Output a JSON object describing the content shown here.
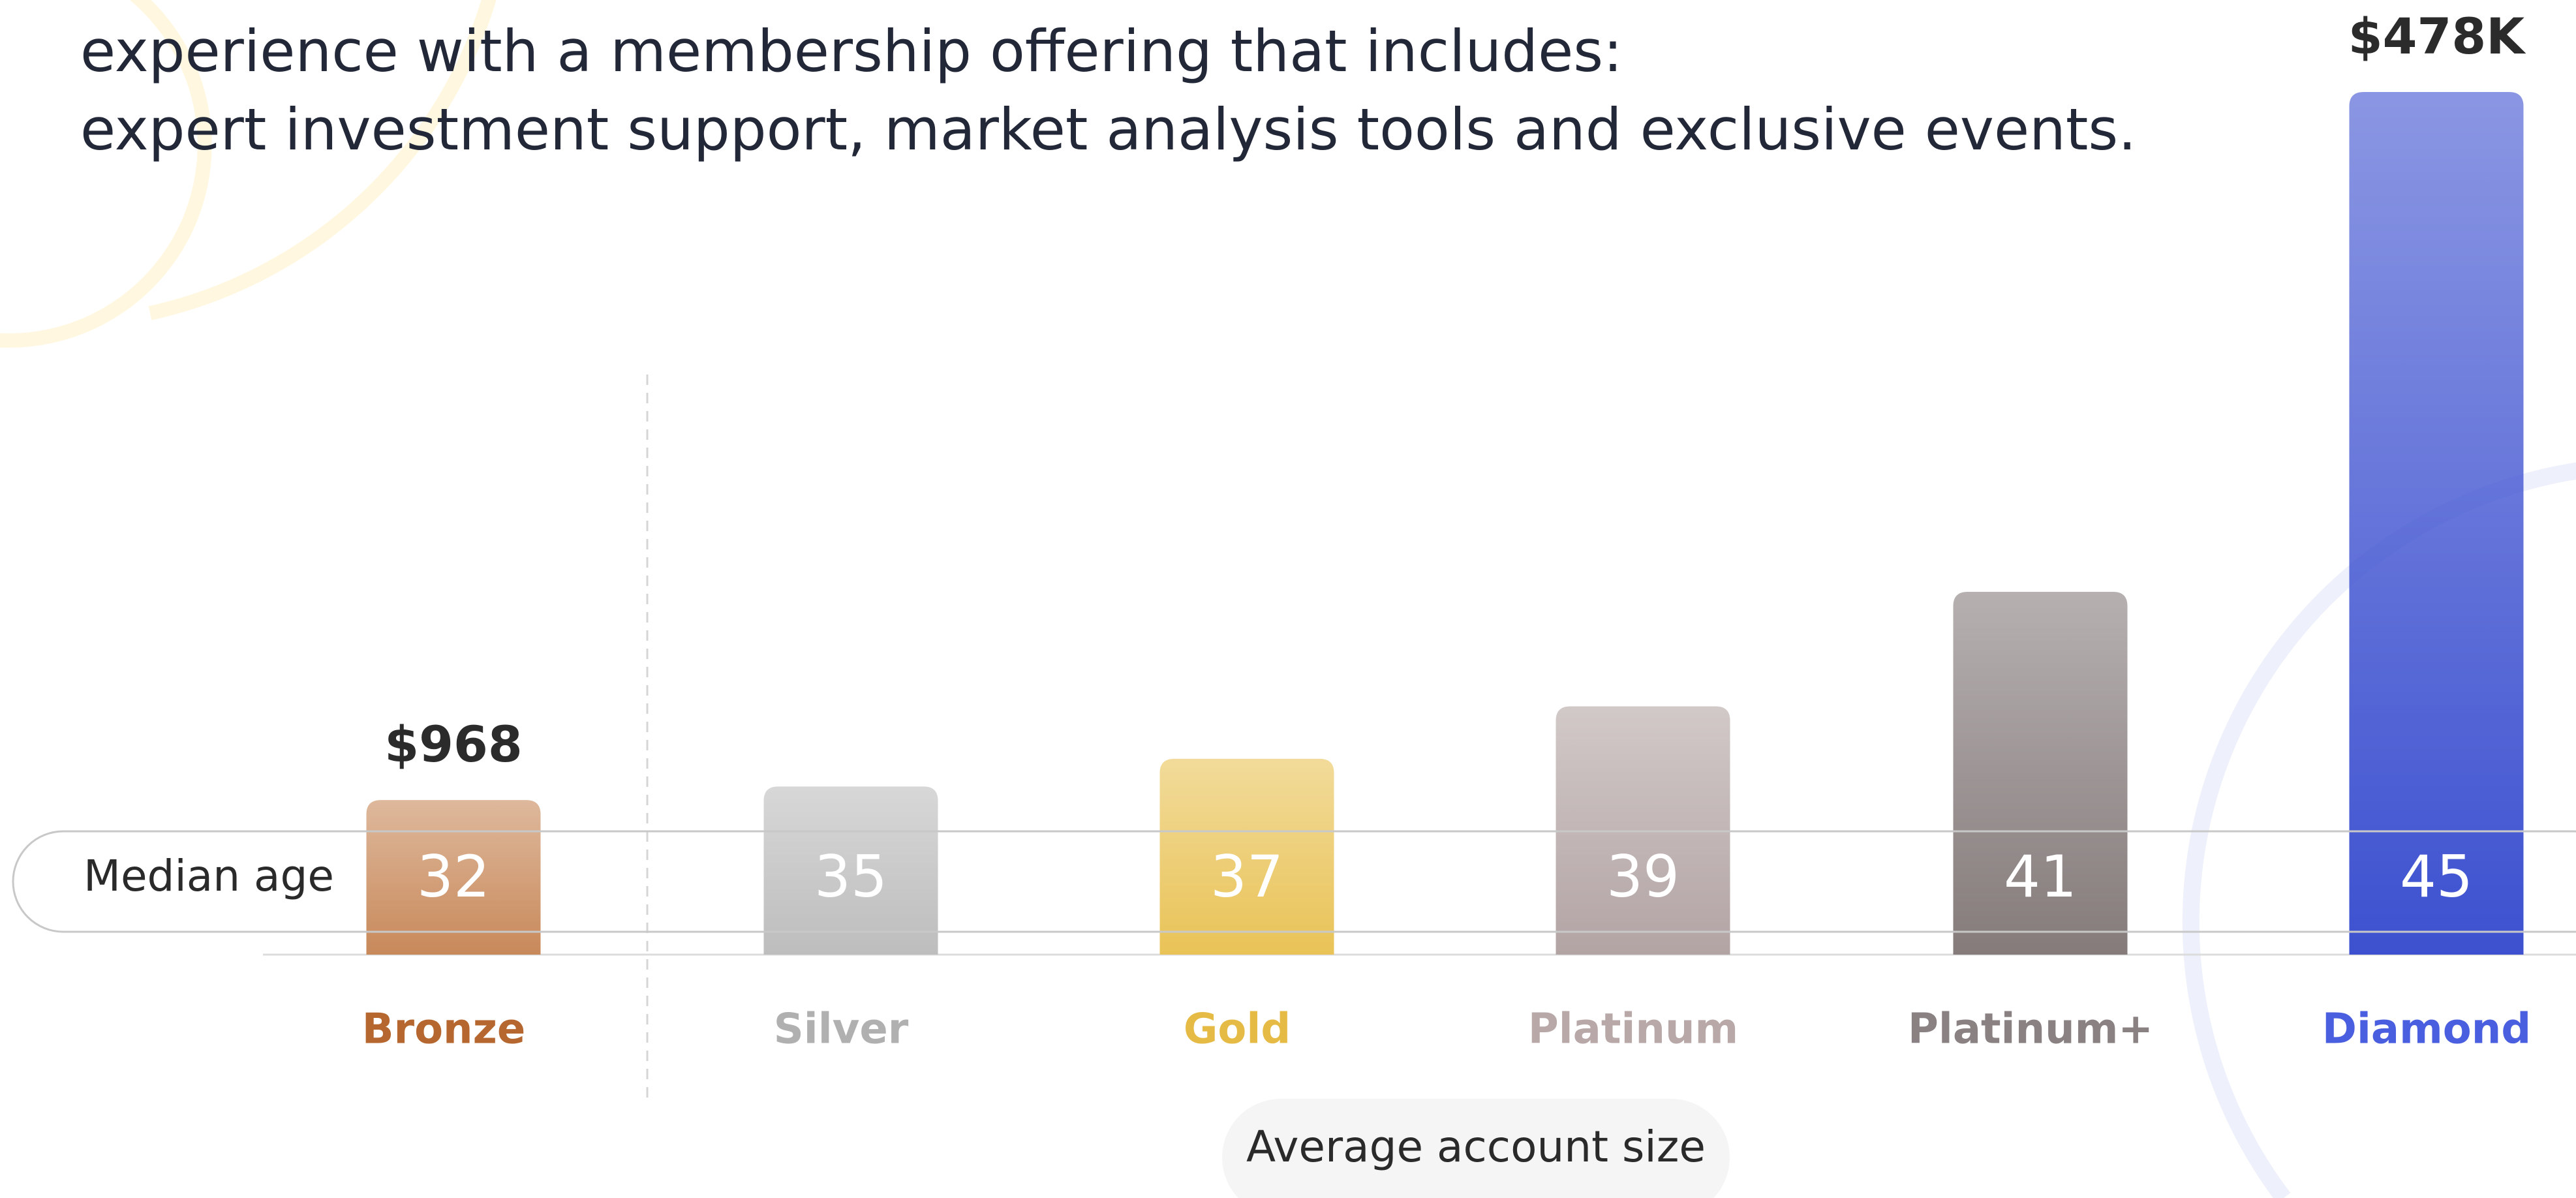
{
  "intro": [
    "experience with a membership offering that includes:",
    "expert investment support, market analysis tools and exclusive events."
  ],
  "chart_data": {
    "type": "bar",
    "log": true,
    "categories": [
      "Bronze",
      "Silver",
      "Gold",
      "Platinum",
      "Platinum+",
      "Diamond"
    ],
    "values": [
      968,
      1090,
      1390,
      2200,
      6000,
      478000
    ],
    "value_labels": [
      "$968",
      null,
      null,
      null,
      null,
      "$478K"
    ],
    "colors": [
      "#c8895a",
      "#bdbdbd",
      "#e9c357",
      "#b3a4a4",
      "#857b7b",
      "#3d51d0"
    ],
    "label_colors": [
      "#b5672f",
      "#b0b0b0",
      "#e6bb45",
      "#b8a8a8",
      "#8a8282",
      "#4a5ee0"
    ],
    "ylim": [
      250,
      478000
    ],
    "median_age": {
      "label": "Median age",
      "values": [
        32,
        35,
        37,
        39,
        41,
        45
      ]
    },
    "xlabel": "Average account size"
  }
}
